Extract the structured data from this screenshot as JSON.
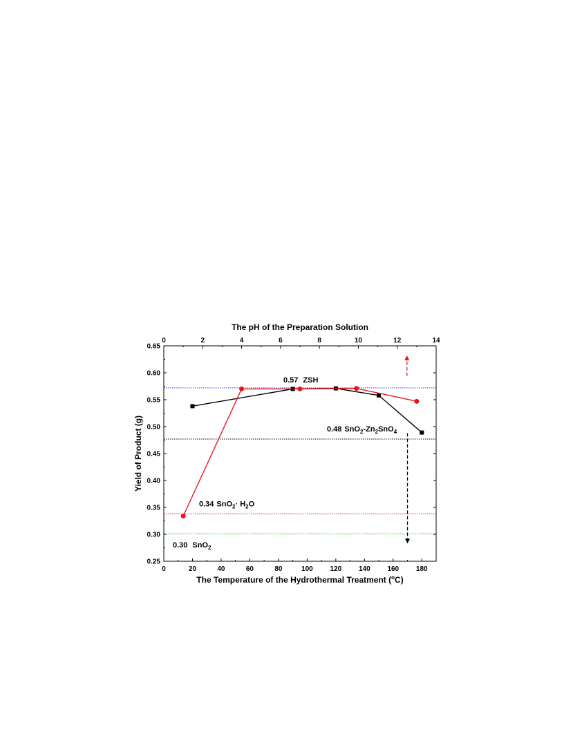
{
  "chart_data": {
    "type": "line",
    "title": "The pH of the Preparation Solution",
    "xlabel": "The Temperature of the Hydrothermal Treatment (",
    "xlabel_unit": "o",
    "xlabel_suffix": "C)",
    "ylabel": "Yield of Product (g)",
    "xlim": [
      0,
      190
    ],
    "ylim": [
      0.25,
      0.65
    ],
    "x2lim": [
      0,
      14
    ],
    "x_ticks": [
      "0",
      "20",
      "40",
      "60",
      "80",
      "100",
      "120",
      "140",
      "160",
      "180"
    ],
    "x2_ticks": [
      "0",
      "2",
      "4",
      "6",
      "8",
      "10",
      "12",
      "14"
    ],
    "y_ticks": [
      "0.25",
      "0.30",
      "0.35",
      "0.40",
      "0.45",
      "0.50",
      "0.55",
      "0.60",
      "0.65"
    ],
    "series": [
      {
        "axis": "bottom",
        "color": "#000000",
        "marker": "square",
        "x": [
          20,
          90,
          120,
          150,
          180
        ],
        "y": [
          0.538,
          0.57,
          0.571,
          0.558,
          0.489
        ]
      },
      {
        "axis": "top",
        "color": "#e8141e",
        "marker": "circle",
        "x": [
          1.0,
          4.0,
          7.0,
          9.9,
          13.0
        ],
        "y": [
          0.334,
          0.57,
          0.57,
          0.571,
          0.547
        ]
      }
    ],
    "reference_lines": [
      {
        "y": 0.572,
        "color": "#1f3cff"
      },
      {
        "y": 0.477,
        "color": "#000000"
      },
      {
        "y": 0.338,
        "color": "#e8141e"
      },
      {
        "y": 0.301,
        "color": "#1fcc1f"
      }
    ],
    "annotations": {
      "zsh": {
        "value": "0.57",
        "name": "ZSH"
      },
      "zn": {
        "value": "0.48",
        "p1": "SnO",
        "s1": "2",
        "p2": "-Zn",
        "s2": "2",
        "p3": "SnO",
        "s3": "4"
      },
      "h2o": {
        "value": "0.34",
        "p1": "SnO",
        "s1": "2",
        "p2": "· H",
        "s2": "2",
        "p3": "O"
      },
      "sno2": {
        "value": "0.30",
        "p1": "SnO",
        "s1": "2"
      }
    },
    "arrows": [
      {
        "axis": "top",
        "x": 12.5,
        "y_from": 0.594,
        "y_to": 0.632,
        "color": "#e8141e"
      },
      {
        "axis": "bottom",
        "x": 170,
        "y_from": 0.488,
        "y_to": 0.283,
        "color": "#000000"
      }
    ]
  }
}
